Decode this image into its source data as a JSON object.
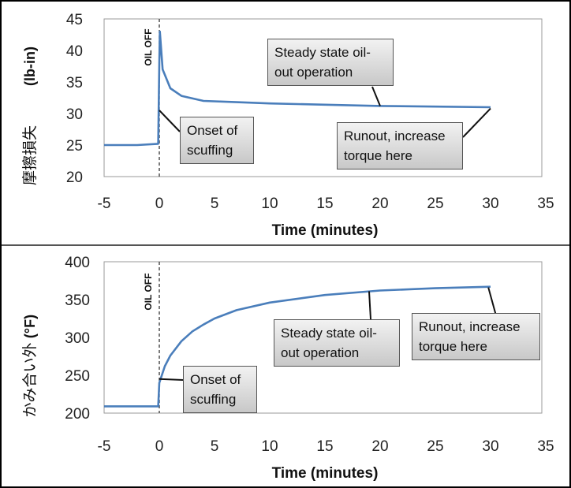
{
  "chart_data": [
    {
      "type": "line",
      "xlabel": "Time (minutes)",
      "ylabel": "(lb-in)",
      "ylabel_jp": "摩擦損失",
      "xlim": [
        -5,
        35
      ],
      "ylim": [
        20,
        45
      ],
      "x_ticks": [
        "-5",
        "0",
        "5",
        "10",
        "15",
        "20",
        "25",
        "30",
        "35"
      ],
      "y_ticks": [
        "20",
        "25",
        "30",
        "35",
        "40",
        "45"
      ],
      "event_marker": {
        "x": 0,
        "label": "OIL OFF"
      },
      "series": [
        {
          "color": "#4a7ebb",
          "points": [
            [
              -5,
              25.0
            ],
            [
              -2,
              25.0
            ],
            [
              -0.1,
              25.2
            ],
            [
              0,
              38
            ],
            [
              0.05,
              43
            ],
            [
              0.3,
              37
            ],
            [
              1,
              34.0
            ],
            [
              2,
              32.8
            ],
            [
              4,
              32.0
            ],
            [
              7,
              31.8
            ],
            [
              10,
              31.6
            ],
            [
              15,
              31.4
            ],
            [
              20,
              31.2
            ],
            [
              25,
              31.1
            ],
            [
              30,
              31.0
            ]
          ]
        }
      ],
      "callouts": [
        {
          "name": "onset",
          "lines": [
            "Onset of",
            "scuffing"
          ],
          "anchor": [
            0,
            30.5
          ]
        },
        {
          "name": "steady",
          "lines": [
            "Steady state oil-",
            "out operation"
          ],
          "anchor": [
            20,
            31.2
          ]
        },
        {
          "name": "runout",
          "lines": [
            "Runout, increase",
            "torque here"
          ],
          "anchor": [
            30,
            30.8
          ]
        }
      ]
    },
    {
      "type": "line",
      "xlabel": "Time (minutes)",
      "ylabel": "(°F)",
      "ylabel_jp": "かみ合い外",
      "xlim": [
        -5,
        35
      ],
      "ylim": [
        200,
        400
      ],
      "x_ticks": [
        "-5",
        "0",
        "5",
        "10",
        "15",
        "20",
        "25",
        "30",
        "35"
      ],
      "y_ticks": [
        "200",
        "250",
        "300",
        "350",
        "400"
      ],
      "event_marker": {
        "x": 0,
        "label": "OIL OFF"
      },
      "series": [
        {
          "color": "#4a7ebb",
          "points": [
            [
              -5,
              209
            ],
            [
              -0.1,
              209
            ],
            [
              0,
              240
            ],
            [
              0.5,
              262
            ],
            [
              1,
              276
            ],
            [
              2,
              295
            ],
            [
              3,
              308
            ],
            [
              4,
              317
            ],
            [
              5,
              325
            ],
            [
              7,
              336
            ],
            [
              10,
              346
            ],
            [
              15,
              356
            ],
            [
              20,
              362
            ],
            [
              25,
              365
            ],
            [
              30,
              367
            ]
          ]
        }
      ],
      "callouts": [
        {
          "name": "onset",
          "lines": [
            "Onset of",
            "scuffing"
          ],
          "anchor": [
            0,
            245
          ]
        },
        {
          "name": "steady",
          "lines": [
            "Steady state oil-",
            "out operation"
          ],
          "anchor": [
            19,
            361
          ]
        },
        {
          "name": "runout",
          "lines": [
            "Runout, increase",
            "torque here"
          ],
          "anchor": [
            29.8,
            366
          ]
        }
      ]
    }
  ]
}
